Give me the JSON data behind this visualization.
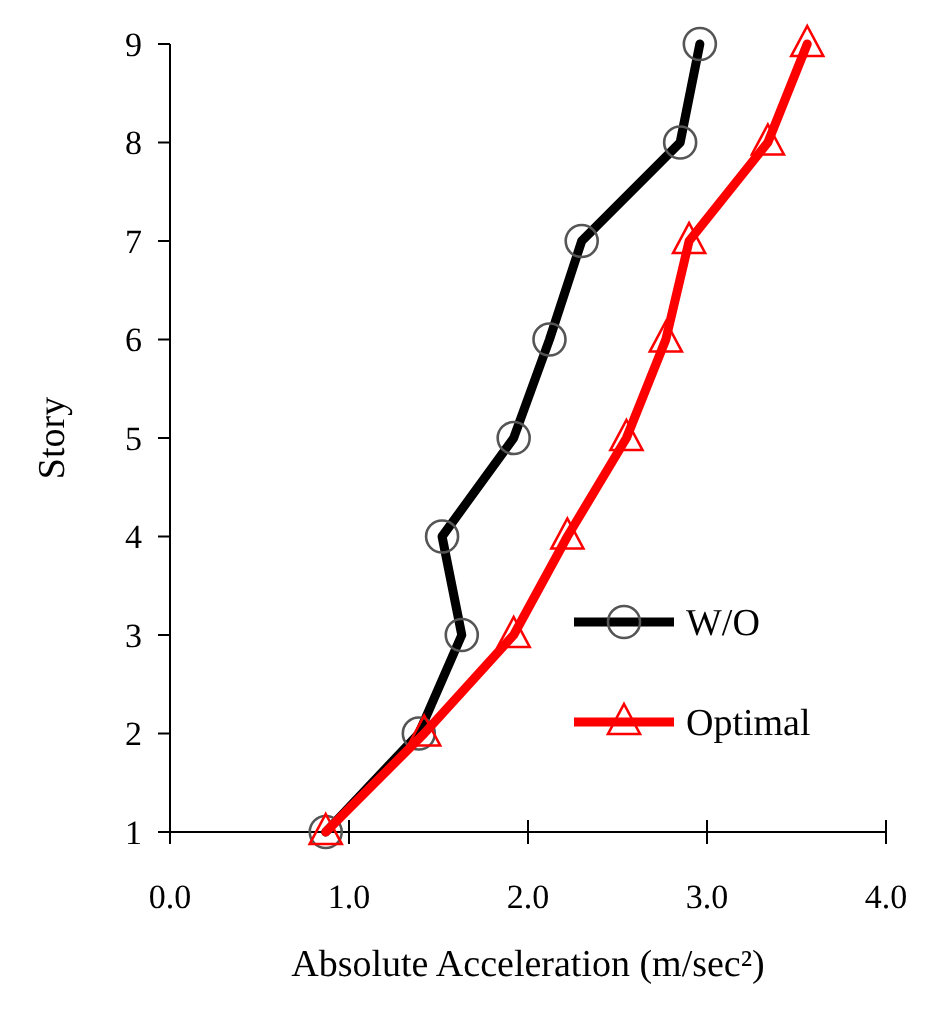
{
  "chart_data": {
    "type": "line",
    "xlabel": "Absolute Acceleration (m/sec²)",
    "ylabel": "Story",
    "xlim": [
      0,
      4
    ],
    "xticks": [
      {
        "value": 0,
        "label": "0.0"
      },
      {
        "value": 1,
        "label": "1.0"
      },
      {
        "value": 2,
        "label": "2.0"
      },
      {
        "value": 3,
        "label": "3.0"
      },
      {
        "value": 4,
        "label": "4.0"
      }
    ],
    "ylim": [
      1,
      9
    ],
    "yticks": [
      1,
      2,
      3,
      4,
      5,
      6,
      7,
      8,
      9
    ],
    "grid": false,
    "legend": "bottom right",
    "line_style": "solid",
    "series": [
      {
        "name": "W/O",
        "color": "#000000",
        "marker": "circle",
        "x": [
          0.87,
          1.39,
          1.63,
          1.52,
          1.92,
          2.12,
          2.3,
          2.85,
          2.96
        ],
        "values": [
          1,
          2,
          3,
          4,
          5,
          6,
          7,
          8,
          9
        ]
      },
      {
        "name": "Optimal",
        "color": "#ff0000",
        "marker": "triangle",
        "x": [
          0.87,
          1.42,
          1.92,
          2.22,
          2.55,
          2.77,
          2.9,
          3.34,
          3.56
        ],
        "values": [
          1,
          2,
          3,
          4,
          5,
          6,
          7,
          8,
          9
        ]
      }
    ]
  }
}
